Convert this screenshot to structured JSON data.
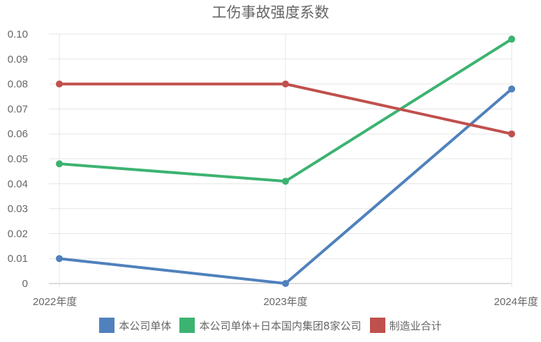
{
  "chart_data": {
    "type": "line",
    "title": "工伤事故强度系数",
    "xlabel": "",
    "ylabel": "",
    "categories": [
      "2022年度",
      "2023年度",
      "2024年度"
    ],
    "ylim": [
      0,
      0.1
    ],
    "yticks": [
      "0",
      "0.01",
      "0.02",
      "0.03",
      "0.04",
      "0.05",
      "0.06",
      "0.07",
      "0.08",
      "0.09",
      "0.10"
    ],
    "grid": true,
    "legend_position": "bottom",
    "series": [
      {
        "name": "本公司单体",
        "color": "#4f81bd",
        "values": [
          0.01,
          0.0,
          0.078
        ]
      },
      {
        "name": "本公司单体+日本国内集团8家公司",
        "color": "#3cb371",
        "values": [
          0.048,
          0.041,
          0.098
        ]
      },
      {
        "name": "制造业合计",
        "color": "#c0504d",
        "values": [
          0.08,
          0.08,
          0.06
        ]
      }
    ]
  }
}
